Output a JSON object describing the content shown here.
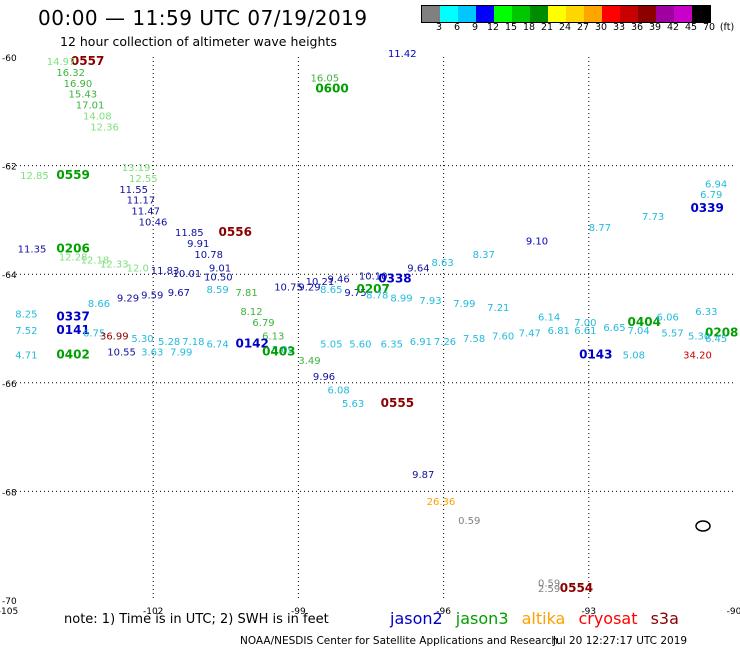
{
  "header": {
    "title": "00:00 — 11:59 UTC 07/19/2019",
    "subtitle": "12 hour collection of altimeter wave heights"
  },
  "colorbar": {
    "colors": [
      "#808080",
      "#00ffff",
      "#00c8ff",
      "#0000ff",
      "#00ff00",
      "#00c800",
      "#008c00",
      "#ffff00",
      "#ffd700",
      "#ffa500",
      "#ff0000",
      "#c80000",
      "#8c0000",
      "#a000a0",
      "#c800c8",
      "#000000"
    ],
    "labels": [
      "3",
      "6",
      "9",
      "12",
      "15",
      "18",
      "21",
      "24",
      "27",
      "30",
      "33",
      "36",
      "39",
      "42",
      "45",
      "70",
      "(ft)"
    ]
  },
  "map": {
    "lon_ticks": [
      "-105",
      "-102",
      "-99",
      "-96",
      "-93",
      "-90"
    ],
    "lat_ticks": [
      "-60",
      "-62",
      "-64",
      "-66",
      "-68",
      "-70"
    ],
    "lon_range": [
      -105,
      -90
    ],
    "lat_range": [
      -70,
      -60
    ],
    "grid": "dotted"
  },
  "colors": {
    "jason2": "#0000c8",
    "jason3": "#00a000",
    "altika": "#ffa000",
    "cryosat": "#ff0000",
    "s3a": "#8b0000",
    "light_green": "#7ee07e",
    "green": "#3cb43c",
    "cyan": "#22bbdd",
    "navy": "#1010a0",
    "gray": "#808080",
    "dark_red": "#8b0000",
    "gold": "#e0b000"
  },
  "labels": [
    {
      "t": "0557",
      "lon": -103.7,
      "lat": -60.15,
      "c": "dark_red",
      "b": true
    },
    {
      "t": "14.97",
      "lon": -104.2,
      "lat": -60.15,
      "c": "light_green"
    },
    {
      "t": "16.32",
      "lon": -104.0,
      "lat": -60.35,
      "c": "green"
    },
    {
      "t": "16.90",
      "lon": -103.85,
      "lat": -60.55,
      "c": "green"
    },
    {
      "t": "15.43",
      "lon": -103.75,
      "lat": -60.75,
      "c": "green"
    },
    {
      "t": "17.01",
      "lon": -103.6,
      "lat": -60.95,
      "c": "green"
    },
    {
      "t": "14.08",
      "lon": -103.45,
      "lat": -61.15,
      "c": "light_green"
    },
    {
      "t": "12.36",
      "lon": -103.3,
      "lat": -61.35,
      "c": "light_green"
    },
    {
      "t": "13.19",
      "lon": -102.65,
      "lat": -62.1,
      "c": "light_green"
    },
    {
      "t": "12.55",
      "lon": -102.5,
      "lat": -62.3,
      "c": "light_green"
    },
    {
      "t": "12.85",
      "lon": -104.75,
      "lat": -62.25,
      "c": "light_green"
    },
    {
      "t": "0559",
      "lon": -104.0,
      "lat": -62.25,
      "c": "jason3",
      "b": true
    },
    {
      "t": "0600",
      "lon": -98.65,
      "lat": -60.65,
      "c": "jason3",
      "b": true
    },
    {
      "t": "16.05",
      "lon": -98.75,
      "lat": -60.45,
      "c": "green"
    },
    {
      "t": "11.42",
      "lon": -97.15,
      "lat": -60.0,
      "c": "jason2"
    },
    {
      "t": "11.55",
      "lon": -102.7,
      "lat": -62.5,
      "c": "navy"
    },
    {
      "t": "11.17",
      "lon": -102.55,
      "lat": -62.7,
      "c": "navy"
    },
    {
      "t": "11.47",
      "lon": -102.45,
      "lat": -62.9,
      "c": "navy"
    },
    {
      "t": "10.46",
      "lon": -102.3,
      "lat": -63.1,
      "c": "navy"
    },
    {
      "t": "11.85",
      "lon": -101.55,
      "lat": -63.3,
      "c": "navy"
    },
    {
      "t": "0556",
      "lon": -100.65,
      "lat": -63.3,
      "c": "dark_red",
      "b": true
    },
    {
      "t": "9.91",
      "lon": -101.3,
      "lat": -63.5,
      "c": "navy"
    },
    {
      "t": "10.78",
      "lon": -101.15,
      "lat": -63.7,
      "c": "navy"
    },
    {
      "t": "11.35",
      "lon": -104.8,
      "lat": -63.6,
      "c": "navy"
    },
    {
      "t": "0206",
      "lon": -104.0,
      "lat": -63.6,
      "c": "jason3",
      "b": true
    },
    {
      "t": "12.28",
      "lon": -103.95,
      "lat": -63.75,
      "c": "light_green"
    },
    {
      "t": "12.18",
      "lon": -103.5,
      "lat": -63.8,
      "c": "light_green"
    },
    {
      "t": "12.33",
      "lon": -103.1,
      "lat": -63.88,
      "c": "light_green"
    },
    {
      "t": "12.0",
      "lon": -102.55,
      "lat": -63.95,
      "c": "light_green"
    },
    {
      "t": "11.83",
      "lon": -102.05,
      "lat": -64.0,
      "c": "navy"
    },
    {
      "t": "10.01",
      "lon": -101.6,
      "lat": -64.05,
      "c": "navy"
    },
    {
      "t": "10.50",
      "lon": -100.95,
      "lat": -64.12,
      "c": "navy"
    },
    {
      "t": "9.01",
      "lon": -100.85,
      "lat": -63.95,
      "c": "navy"
    },
    {
      "t": "10.75",
      "lon": -99.5,
      "lat": -64.3,
      "c": "navy"
    },
    {
      "t": "10.21",
      "lon": -98.85,
      "lat": -64.2,
      "c": "navy"
    },
    {
      "t": "9.46",
      "lon": -98.4,
      "lat": -64.15,
      "c": "navy"
    },
    {
      "t": "10.10",
      "lon": -97.75,
      "lat": -64.1,
      "c": "navy"
    },
    {
      "t": "0338",
      "lon": -97.35,
      "lat": -64.15,
      "c": "jason2",
      "b": true
    },
    {
      "t": "9.64",
      "lon": -96.75,
      "lat": -63.95,
      "c": "navy"
    },
    {
      "t": "8.63",
      "lon": -96.25,
      "lat": -63.85,
      "c": "cyan"
    },
    {
      "t": "8.37",
      "lon": -95.4,
      "lat": -63.7,
      "c": "cyan"
    },
    {
      "t": "9.10",
      "lon": -94.3,
      "lat": -63.45,
      "c": "jason2"
    },
    {
      "t": "8.77",
      "lon": -93.0,
      "lat": -63.2,
      "c": "cyan"
    },
    {
      "t": "7.73",
      "lon": -91.9,
      "lat": -63.0,
      "c": "cyan"
    },
    {
      "t": "0339",
      "lon": -90.9,
      "lat": -62.85,
      "c": "jason2",
      "b": true
    },
    {
      "t": "6.79",
      "lon": -90.7,
      "lat": -62.6,
      "c": "cyan"
    },
    {
      "t": "6.94",
      "lon": -90.25,
      "lat": -62.4,
      "c": "cyan"
    },
    {
      "t": "8.25",
      "lon": -104.85,
      "lat": -64.8,
      "c": "cyan"
    },
    {
      "t": "0337",
      "lon": -104.0,
      "lat": -64.85,
      "c": "jason2",
      "b": true
    },
    {
      "t": "8.66",
      "lon": -103.35,
      "lat": -64.6,
      "c": "cyan"
    },
    {
      "t": "9.29",
      "lon": -102.75,
      "lat": -64.5,
      "c": "navy"
    },
    {
      "t": "9.59",
      "lon": -102.25,
      "lat": -64.45,
      "c": "navy"
    },
    {
      "t": "9.67",
      "lon": -101.7,
      "lat": -64.4,
      "c": "navy"
    },
    {
      "t": "8.59",
      "lon": -100.9,
      "lat": -64.35,
      "c": "cyan"
    },
    {
      "t": "7.81",
      "lon": -100.3,
      "lat": -64.4,
      "c": "green"
    },
    {
      "t": "8.12",
      "lon": -100.2,
      "lat": -64.75,
      "c": "green"
    },
    {
      "t": "6.79",
      "lon": -99.95,
      "lat": -64.95,
      "c": "green"
    },
    {
      "t": "6.13",
      "lon": -99.75,
      "lat": -65.2,
      "c": "green"
    },
    {
      "t": "5.09",
      "lon": -99.55,
      "lat": -65.45,
      "c": "cyan"
    },
    {
      "t": "9.29",
      "lon": -99.0,
      "lat": -64.3,
      "c": "navy"
    },
    {
      "t": "8.65",
      "lon": -98.55,
      "lat": -64.35,
      "c": "cyan"
    },
    {
      "t": "9.75",
      "lon": -98.05,
      "lat": -64.4,
      "c": "navy"
    },
    {
      "t": "0207",
      "lon": -97.8,
      "lat": -64.35,
      "c": "jason3",
      "b": true
    },
    {
      "t": "8.78",
      "lon": -97.6,
      "lat": -64.45,
      "c": "cyan"
    },
    {
      "t": "8.99",
      "lon": -97.1,
      "lat": -64.5,
      "c": "cyan"
    },
    {
      "t": "7.93",
      "lon": -96.5,
      "lat": -64.55,
      "c": "cyan"
    },
    {
      "t": "7.99",
      "lon": -95.8,
      "lat": -64.6,
      "c": "cyan"
    },
    {
      "t": "7.21",
      "lon": -95.1,
      "lat": -64.68,
      "c": "cyan"
    },
    {
      "t": "6.14",
      "lon": -94.05,
      "lat": -64.85,
      "c": "cyan"
    },
    {
      "t": "7.00",
      "lon": -93.3,
      "lat": -64.95,
      "c": "cyan"
    },
    {
      "t": "0404",
      "lon": -92.2,
      "lat": -64.95,
      "c": "jason3",
      "b": true
    },
    {
      "t": "6.06",
      "lon": -91.6,
      "lat": -64.85,
      "c": "cyan"
    },
    {
      "t": "6.33",
      "lon": -90.8,
      "lat": -64.75,
      "c": "cyan"
    },
    {
      "t": "7.52",
      "lon": -104.85,
      "lat": -65.1,
      "c": "cyan"
    },
    {
      "t": "0141",
      "lon": -104.0,
      "lat": -65.1,
      "c": "jason2",
      "b": true
    },
    {
      "t": "6.75",
      "lon": -103.45,
      "lat": -65.15,
      "c": "cyan"
    },
    {
      "t": "36.99",
      "lon": -103.1,
      "lat": -65.2,
      "c": "dark_red"
    },
    {
      "t": "5.30",
      "lon": -102.45,
      "lat": -65.25,
      "c": "cyan"
    },
    {
      "t": "5.28",
      "lon": -101.9,
      "lat": -65.3,
      "c": "cyan"
    },
    {
      "t": "7.18",
      "lon": -101.4,
      "lat": -65.3,
      "c": "cyan"
    },
    {
      "t": "6.74",
      "lon": -100.9,
      "lat": -65.35,
      "c": "cyan"
    },
    {
      "t": "0142",
      "lon": -100.3,
      "lat": -65.35,
      "c": "jason2",
      "b": true
    },
    {
      "t": "0403",
      "lon": -99.75,
      "lat": -65.5,
      "c": "jason3",
      "b": true
    },
    {
      "t": "5.05",
      "lon": -98.55,
      "lat": -65.35,
      "c": "cyan"
    },
    {
      "t": "5.60",
      "lon": -97.95,
      "lat": -65.35,
      "c": "cyan"
    },
    {
      "t": "6.35",
      "lon": -97.3,
      "lat": -65.35,
      "c": "cyan"
    },
    {
      "t": "6.91",
      "lon": -96.7,
      "lat": -65.3,
      "c": "cyan"
    },
    {
      "t": "7.26",
      "lon": -96.2,
      "lat": -65.3,
      "c": "cyan"
    },
    {
      "t": "7.58",
      "lon": -95.6,
      "lat": -65.25,
      "c": "cyan"
    },
    {
      "t": "7.60",
      "lon": -95.0,
      "lat": -65.2,
      "c": "cyan"
    },
    {
      "t": "7.47",
      "lon": -94.45,
      "lat": -65.15,
      "c": "cyan"
    },
    {
      "t": "6.81",
      "lon": -93.85,
      "lat": -65.1,
      "c": "cyan"
    },
    {
      "t": "6.61",
      "lon": -93.3,
      "lat": -65.1,
      "c": "cyan"
    },
    {
      "t": "6.65",
      "lon": -92.7,
      "lat": -65.05,
      "c": "cyan"
    },
    {
      "t": "7.04",
      "lon": -92.2,
      "lat": -65.1,
      "c": "cyan"
    },
    {
      "t": "5.57",
      "lon": -91.5,
      "lat": -65.15,
      "c": "cyan"
    },
    {
      "t": "5.30",
      "lon": -90.95,
      "lat": -65.2,
      "c": "cyan"
    },
    {
      "t": "0208",
      "lon": -90.55,
      "lat": -65.15,
      "c": "jason3",
      "b": true
    },
    {
      "t": "6.45",
      "lon": -90.25,
      "lat": -65.25,
      "c": "cyan"
    },
    {
      "t": "4.71",
      "lon": -104.85,
      "lat": -65.55,
      "c": "cyan"
    },
    {
      "t": "0402",
      "lon": -104.0,
      "lat": -65.55,
      "c": "jason3",
      "b": true
    },
    {
      "t": "10.55",
      "lon": -102.95,
      "lat": -65.5,
      "c": "navy"
    },
    {
      "t": "3.63",
      "lon": -102.25,
      "lat": -65.5,
      "c": "cyan"
    },
    {
      "t": "7.99",
      "lon": -101.65,
      "lat": -65.5,
      "c": "cyan"
    },
    {
      "t": "3.49",
      "lon": -99.0,
      "lat": -65.65,
      "c": "green"
    },
    {
      "t": "9.96",
      "lon": -98.7,
      "lat": -65.95,
      "c": "navy"
    },
    {
      "t": "6.08",
      "lon": -98.4,
      "lat": -66.2,
      "c": "cyan"
    },
    {
      "t": "5.63",
      "lon": -98.1,
      "lat": -66.45,
      "c": "cyan"
    },
    {
      "t": "0555",
      "lon": -97.3,
      "lat": -66.45,
      "c": "dark_red",
      "b": true
    },
    {
      "t": "0143",
      "lon": -93.2,
      "lat": -65.55,
      "c": "jason2",
      "b": true
    },
    {
      "t": "5.08",
      "lon": -92.3,
      "lat": -65.55,
      "c": "cyan"
    },
    {
      "t": "34.20",
      "lon": -91.05,
      "lat": -65.55,
      "c": "cyan_red"
    },
    {
      "t": "9.87",
      "lon": -96.65,
      "lat": -67.75,
      "c": "navy"
    },
    {
      "t": "26.36",
      "lon": -96.35,
      "lat": -68.25,
      "c": "altika"
    },
    {
      "t": "0.59",
      "lon": -95.7,
      "lat": -68.6,
      "c": "gray"
    },
    {
      "t": "0.59",
      "lon": -94.05,
      "lat": -69.75,
      "c": "gray"
    },
    {
      "t": "2.59",
      "lon": -94.05,
      "lat": -69.85,
      "c": "gray"
    },
    {
      "t": "0554",
      "lon": -93.6,
      "lat": -69.85,
      "c": "dark_red",
      "b": true
    }
  ],
  "note": "note:  1) Time is in UTC;  2) SWH is in feet",
  "legend": {
    "jason2": "jason2",
    "jason3": "jason3",
    "altika": "altika",
    "cryosat": "cryosat",
    "s3a": "s3a"
  },
  "footer": {
    "credit": "NOAA/NESDIS Center for Satellite Applications and Research",
    "time": "Jul 20 12:27:17 UTC 2019"
  }
}
